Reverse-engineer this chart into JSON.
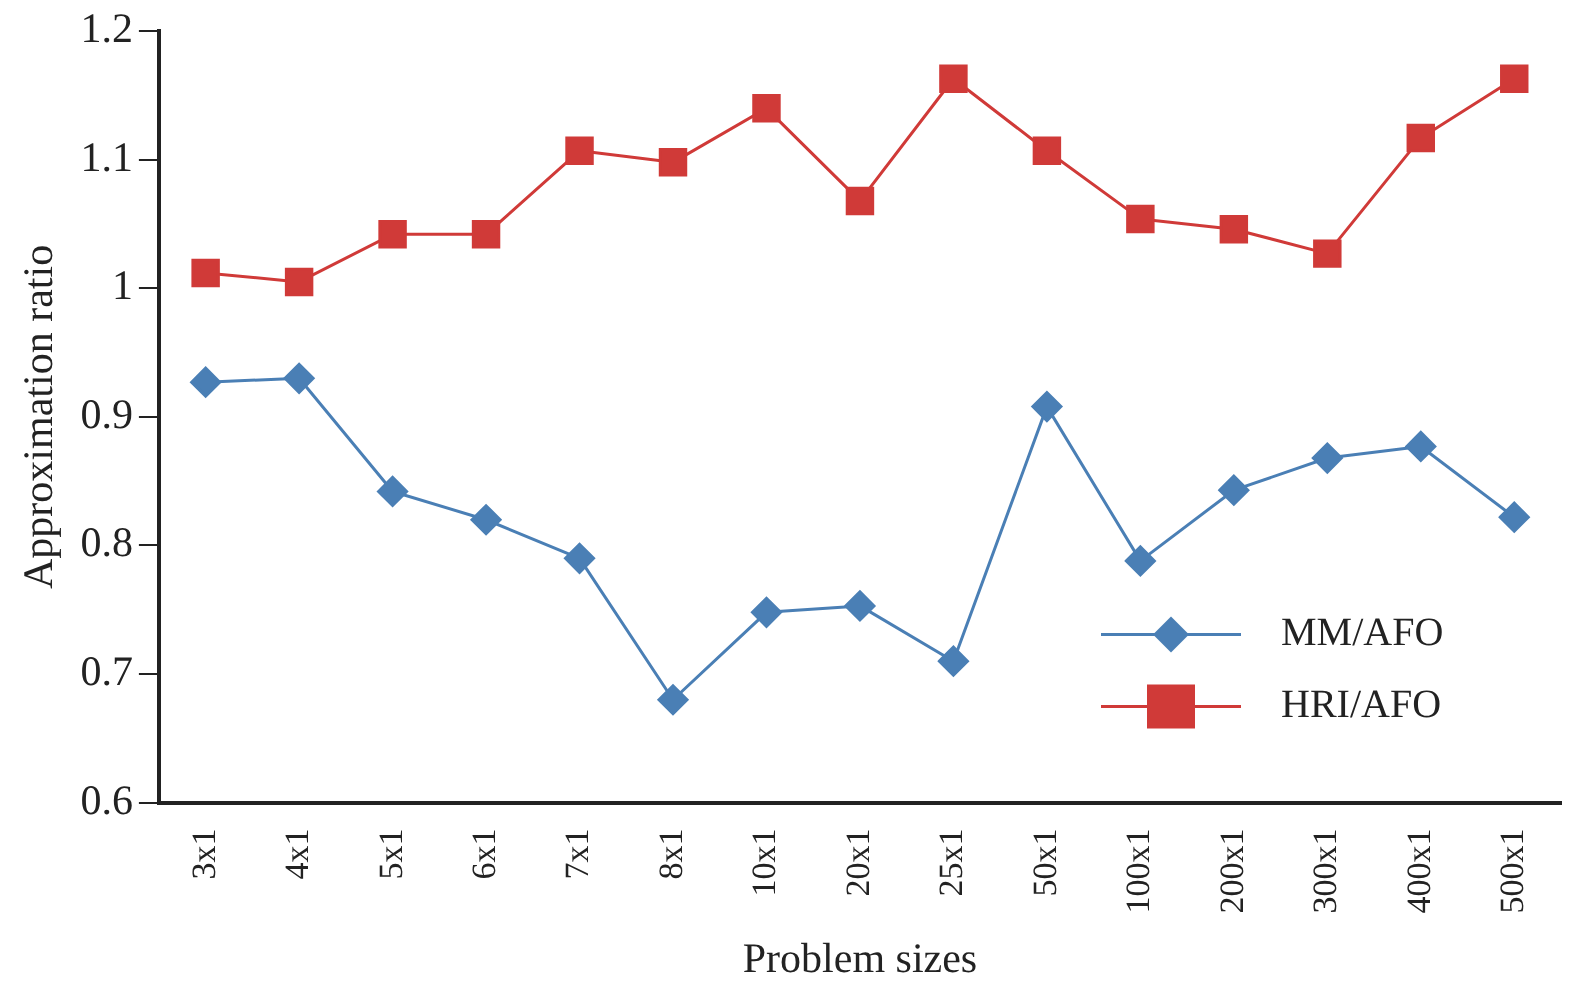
{
  "chart_data": {
    "type": "line",
    "xlabel": "Problem sizes",
    "ylabel": "Approximation ratio",
    "categories": [
      "3x1",
      "4x1",
      "5x1",
      "6x1",
      "7x1",
      "8x1",
      "10x1",
      "20x1",
      "25x1",
      "50x1",
      "100x1",
      "200x1",
      "300x1",
      "400x1",
      "500x1"
    ],
    "series": [
      {
        "name": "MM/AFO",
        "color": "#4a7fb5",
        "marker": "diamond",
        "values": [
          0.927,
          0.93,
          0.842,
          0.82,
          0.79,
          0.68,
          0.748,
          0.753,
          0.71,
          0.908,
          0.788,
          0.843,
          0.868,
          0.877,
          0.822
        ]
      },
      {
        "name": "HRI/AFO",
        "color": "#d03a38",
        "marker": "square",
        "values": [
          1.012,
          1.005,
          1.042,
          1.042,
          1.107,
          1.098,
          1.14,
          1.068,
          1.163,
          1.107,
          1.054,
          1.046,
          1.027,
          1.117,
          1.163
        ]
      }
    ],
    "ylim": [
      0.6,
      1.2
    ],
    "yticks": [
      {
        "value": 0.6,
        "label": "0.6"
      },
      {
        "value": 0.7,
        "label": "0.7"
      },
      {
        "value": 0.8,
        "label": "0.8"
      },
      {
        "value": 0.9,
        "label": "0.9"
      },
      1,
      {
        "value": 1.1,
        "label": "1.1"
      },
      {
        "value": 1.2,
        "label": "1.2"
      }
    ],
    "grid": false,
    "legend": "bottom right"
  }
}
